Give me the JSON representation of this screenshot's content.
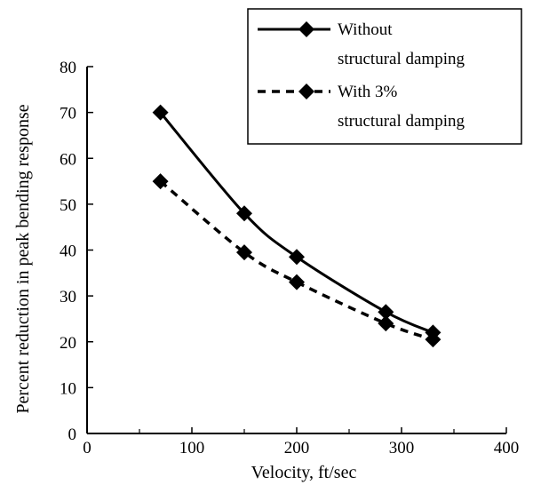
{
  "chart_data": {
    "type": "line",
    "xlabel": "Velocity, ft/sec",
    "ylabel": "Percent reduction in peak bending response",
    "xlim": [
      0,
      400
    ],
    "ylim": [
      0,
      80
    ],
    "x_ticks": [
      0,
      100,
      200,
      300,
      400
    ],
    "y_ticks": [
      0,
      10,
      20,
      30,
      40,
      50,
      60,
      70,
      80
    ],
    "grid": false,
    "legend_position": "top-right",
    "series": [
      {
        "name": "Without structural damping",
        "legend_lines": [
          "Without",
          "structural damping"
        ],
        "style": "solid",
        "marker": "diamond",
        "color": "#000000",
        "x": [
          70,
          150,
          200,
          285,
          330
        ],
        "y": [
          70,
          48,
          38.5,
          26.5,
          22
        ]
      },
      {
        "name": "With 3% structural damping",
        "legend_lines": [
          "With 3%",
          "structural damping"
        ],
        "style": "dashed",
        "marker": "diamond",
        "color": "#000000",
        "x": [
          70,
          150,
          200,
          285,
          330
        ],
        "y": [
          55,
          39.5,
          33,
          24,
          20.5
        ]
      }
    ]
  }
}
